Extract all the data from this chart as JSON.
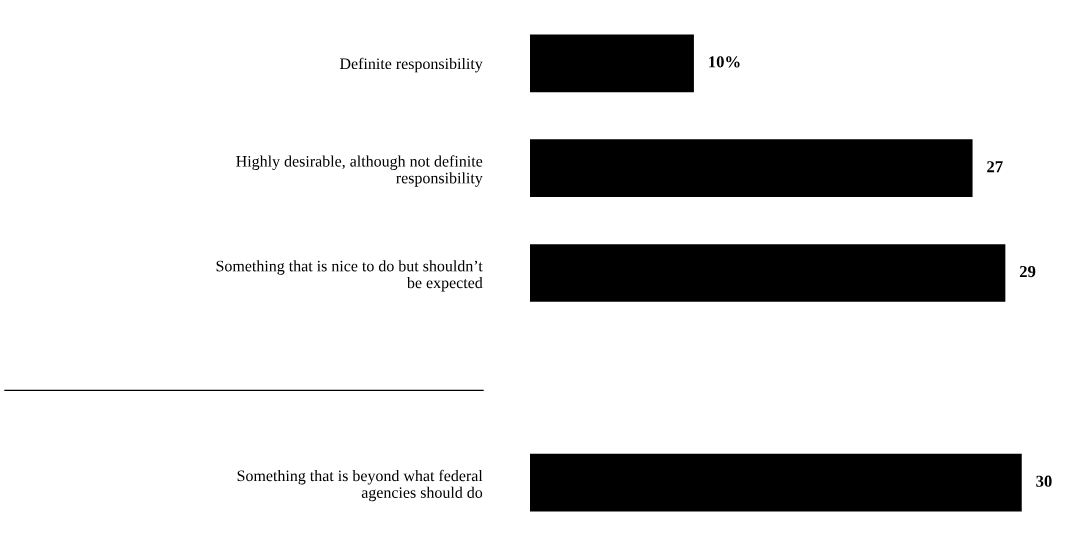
{
  "chart_data": {
    "type": "bar",
    "orientation": "horizontal",
    "categories": [
      "Definite responsibility",
      "Highly desirable, although not definite\nresponsibility",
      "Something that is nice to do but shouldn’t\nbe expected",
      null,
      "Something that is beyond what federal\nagencies should do"
    ],
    "values": [
      10,
      27,
      29,
      null,
      30
    ],
    "value_labels": [
      "10%",
      "27",
      "29",
      null,
      "30"
    ],
    "color": "#000000",
    "grid": false,
    "legend": false
  }
}
